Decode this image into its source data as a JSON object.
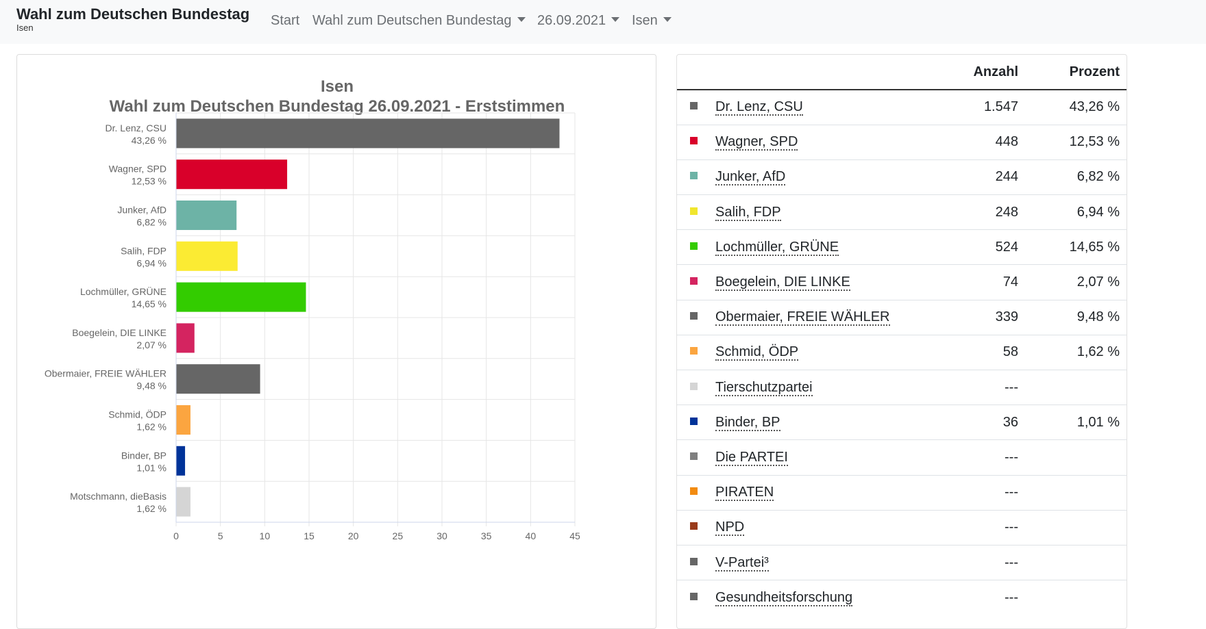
{
  "navbar": {
    "title": "Wahl zum Deutschen Bundestag",
    "subtitle": "Isen",
    "items": [
      {
        "label": "Start",
        "dropdown": false
      },
      {
        "label": "Wahl zum Deutschen Bundestag",
        "dropdown": true
      },
      {
        "label": "26.09.2021",
        "dropdown": true
      },
      {
        "label": "Isen",
        "dropdown": true
      }
    ]
  },
  "chart_data": {
    "type": "bar",
    "orientation": "horizontal",
    "title": "Isen",
    "subtitle": "Wahl zum Deutschen Bundestag 26.09.2021  - Erststimmen",
    "categories": [
      {
        "name": "Dr. Lenz, CSU",
        "label": "43,26 %",
        "value": 43.26,
        "color": "#666666"
      },
      {
        "name": "Wagner, SPD",
        "label": "12,53 %",
        "value": 12.53,
        "color": "#d9002a"
      },
      {
        "name": "Junker, AfD",
        "label": "6,82 %",
        "value": 6.82,
        "color": "#6db3a6"
      },
      {
        "name": "Salih, FDP",
        "label": "6,94 %",
        "value": 6.94,
        "color": "#fbeb33"
      },
      {
        "name": "Lochmüller, GRÜNE",
        "label": "14,65 %",
        "value": 14.65,
        "color": "#33cc00"
      },
      {
        "name": "Boegelein, DIE LINKE",
        "label": "2,07 %",
        "value": 2.07,
        "color": "#d42460"
      },
      {
        "name": "Obermaier, FREIE WÄHLER",
        "label": "9,48 %",
        "value": 9.48,
        "color": "#666666"
      },
      {
        "name": "Schmid, ÖDP",
        "label": "1,62 %",
        "value": 1.62,
        "color": "#fba540"
      },
      {
        "name": "Binder, BP",
        "label": "1,01 %",
        "value": 1.01,
        "color": "#003399"
      },
      {
        "name": "Motschmann, dieBasis",
        "label": "1,62 %",
        "value": 1.62,
        "color": "#d5d5d5"
      }
    ],
    "xlim": [
      0,
      45
    ],
    "xticks": [
      "0",
      "5",
      "10",
      "15",
      "20",
      "25",
      "30",
      "35",
      "40",
      "45"
    ],
    "grid": true
  },
  "table": {
    "headers": {
      "anzahl": "Anzahl",
      "prozent": "Prozent"
    },
    "rows": [
      {
        "name": "Dr. Lenz, CSU",
        "count": "1.547",
        "percent": "43,26 %",
        "color": "#666666"
      },
      {
        "name": "Wagner, SPD",
        "count": "448",
        "percent": "12,53 %",
        "color": "#d9002a"
      },
      {
        "name": "Junker, AfD",
        "count": "244",
        "percent": "6,82 %",
        "color": "#6db3a6"
      },
      {
        "name": "Salih, FDP",
        "count": "248",
        "percent": "6,94 %",
        "color": "#f0e62e"
      },
      {
        "name": "Lochmüller, GRÜNE",
        "count": "524",
        "percent": "14,65 %",
        "color": "#33cc00"
      },
      {
        "name": "Boegelein, DIE LINKE",
        "count": "74",
        "percent": "2,07 %",
        "color": "#d42460"
      },
      {
        "name": "Obermaier, FREIE WÄHLER",
        "count": "339",
        "percent": "9,48 %",
        "color": "#666666"
      },
      {
        "name": "Schmid, ÖDP",
        "count": "58",
        "percent": "1,62 %",
        "color": "#fba540"
      },
      {
        "name": "Tierschutzpartei",
        "count": "---",
        "percent": "",
        "color": "#d5d5d5"
      },
      {
        "name": "Binder, BP",
        "count": "36",
        "percent": "1,01 %",
        "color": "#003399"
      },
      {
        "name": "Die PARTEI",
        "count": "---",
        "percent": "",
        "color": "#7f7f7f"
      },
      {
        "name": "PIRATEN",
        "count": "---",
        "percent": "",
        "color": "#f28b10"
      },
      {
        "name": "NPD",
        "count": "---",
        "percent": "",
        "color": "#9a3b1a"
      },
      {
        "name": "V-Partei³",
        "count": "---",
        "percent": "",
        "color": "#666666"
      },
      {
        "name": "Gesundheitsforschung",
        "count": "---",
        "percent": "",
        "color": "#666666"
      }
    ]
  }
}
